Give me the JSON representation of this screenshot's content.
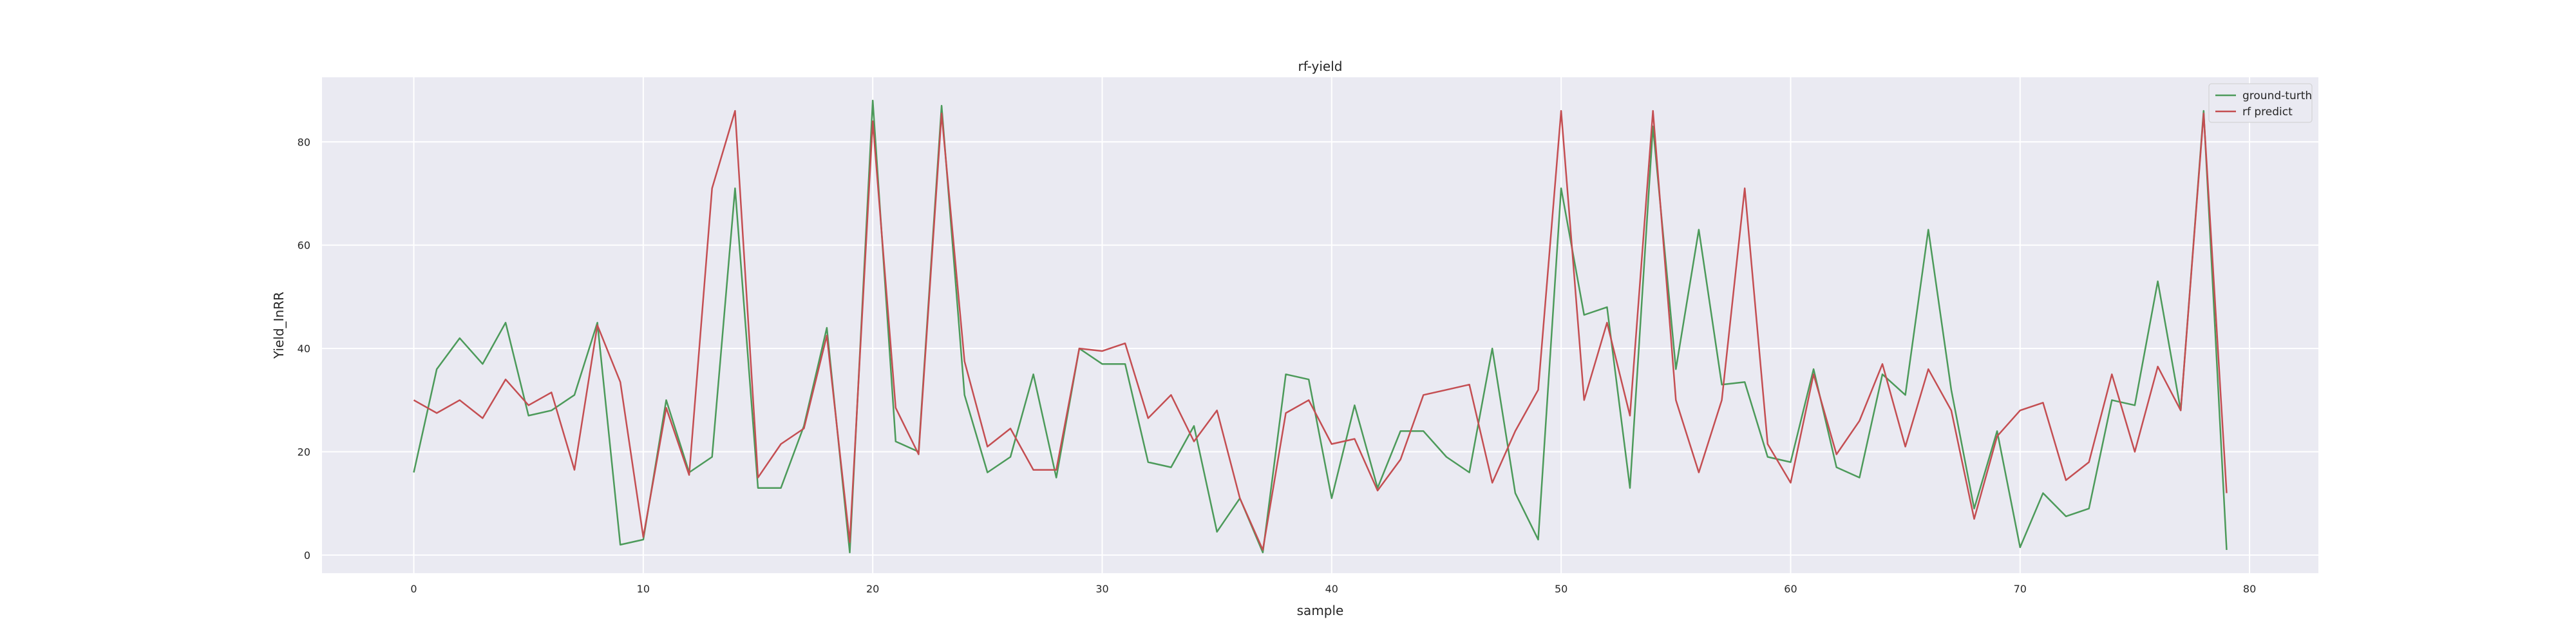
{
  "chart_data": {
    "type": "line",
    "title": "rf-yield",
    "xlabel": "sample",
    "ylabel": "Yield_InRR",
    "xlim": [
      -4,
      83
    ],
    "ylim": [
      -3.5,
      92.5
    ],
    "xticks": [
      0,
      10,
      20,
      30,
      40,
      50,
      60,
      70,
      80
    ],
    "yticks": [
      0,
      20,
      40,
      60,
      80
    ],
    "grid": true,
    "legend_position": "top-right",
    "x": [
      0,
      1,
      2,
      3,
      4,
      5,
      6,
      7,
      8,
      9,
      10,
      11,
      12,
      13,
      14,
      15,
      16,
      17,
      18,
      19,
      20,
      21,
      22,
      23,
      24,
      25,
      26,
      27,
      28,
      29,
      30,
      31,
      32,
      33,
      34,
      35,
      36,
      37,
      38,
      39,
      40,
      41,
      42,
      43,
      44,
      45,
      46,
      47,
      48,
      49,
      50,
      51,
      52,
      53,
      54,
      55,
      56,
      57,
      58,
      59,
      60,
      61,
      62,
      63,
      64,
      65,
      66,
      67,
      68,
      69,
      70,
      71,
      72,
      73,
      74,
      75,
      76,
      77,
      78,
      79
    ],
    "series": [
      {
        "name": "ground-turth",
        "color": "#4c9a5a",
        "values": [
          16,
          36,
          42,
          37,
          45,
          27,
          28,
          31,
          45,
          2,
          3,
          30,
          16,
          19,
          71,
          13,
          13,
          25,
          44,
          0.5,
          88,
          22,
          20,
          87,
          31,
          16,
          19,
          35,
          15,
          40,
          37,
          37,
          18,
          17,
          25,
          4.5,
          11,
          0.5,
          35,
          34,
          11,
          29,
          13,
          24,
          24,
          19,
          16,
          40,
          12,
          3,
          71,
          46.5,
          48,
          13,
          83,
          36,
          63,
          33,
          33.5,
          19,
          18,
          36,
          17,
          15,
          35,
          31,
          63,
          32,
          9,
          24,
          1.5,
          12,
          7.5,
          9,
          30,
          29,
          53,
          28,
          86,
          1
        ]
      },
      {
        "name": "rf predict",
        "color": "#c44e52",
        "values": [
          30,
          27.5,
          30,
          26.5,
          34,
          29,
          31.5,
          16.5,
          44.5,
          33.5,
          3.5,
          28.5,
          15.5,
          71,
          86,
          15,
          21.5,
          24.5,
          42.5,
          2.5,
          84,
          28.5,
          19.5,
          85.5,
          37.5,
          21,
          24.5,
          16.5,
          16.5,
          40,
          39.5,
          41,
          26.5,
          31,
          22,
          28,
          11,
          1,
          27.5,
          30,
          21.5,
          22.5,
          12.5,
          18.5,
          31,
          32,
          33,
          14,
          24,
          32,
          86,
          30,
          45,
          27,
          86,
          30,
          16,
          30,
          71,
          21.5,
          14,
          35,
          19.5,
          26,
          37,
          21,
          36,
          28,
          7,
          23,
          28,
          29.5,
          14.5,
          18,
          35,
          20,
          36.5,
          28,
          85.5,
          12
        ]
      }
    ]
  }
}
